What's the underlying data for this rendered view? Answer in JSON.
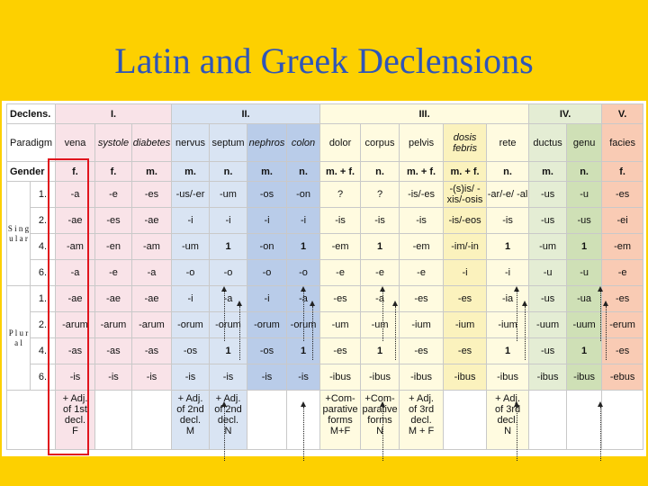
{
  "title": "Latin and Greek Declensions",
  "header1": [
    "Declens.",
    "I.",
    "II.",
    "III.",
    "IV.",
    "V."
  ],
  "paradigm_label": "Paradigm",
  "paradigms": [
    "vena",
    "systole",
    "diabetes",
    "nervus",
    "septum",
    "nephros",
    "colon",
    "dolor",
    "corpus",
    "pelvis",
    "dosis febris",
    "rete",
    "ductus",
    "genu",
    "facies"
  ],
  "gender_label": "Gender",
  "genders": [
    "f.",
    "f.",
    "m.",
    "m.",
    "n.",
    "m.",
    "n.",
    "m. + f.",
    "n.",
    "m. + f.",
    "m. + f.",
    "n.",
    "m.",
    "n.",
    "f."
  ],
  "singular_label": "S i n g u l a r",
  "plural_label": "P l u r a l",
  "singular_rows": [
    {
      "case": "1.",
      "cells": [
        "-a",
        "-e",
        "-es",
        "-us/-er",
        "-um",
        "-os",
        "-on",
        "?",
        "?",
        "-is/-es",
        "-(s)is/ -xis/-osis",
        "-ar/-e/ -al",
        "-us",
        "-u",
        "-es"
      ]
    },
    {
      "case": "2.",
      "cells": [
        "-ae",
        "-es",
        "-ae",
        "-i",
        "-i",
        "-i",
        "-i",
        "-is",
        "-is",
        "-is",
        "-is/-eos",
        "-is",
        "-us",
        "-us",
        "-ei"
      ]
    },
    {
      "case": "4.",
      "cells": [
        "-am",
        "-en",
        "-am",
        "-um",
        "1",
        "-on",
        "1",
        "-em",
        "1",
        "-em",
        "-im/-in",
        "1",
        "-um",
        "1",
        "-em"
      ]
    },
    {
      "case": "6.",
      "cells": [
        "-a",
        "-e",
        "-a",
        "-o",
        "-o",
        "-o",
        "-o",
        "-e",
        "-e",
        "-e",
        "-i",
        "-i",
        "-u",
        "-u",
        "-e"
      ]
    }
  ],
  "plural_rows": [
    {
      "case": "1.",
      "cells": [
        "-ae",
        "-ae",
        "-ae",
        "-i",
        "-a",
        "-i",
        "-a",
        "-es",
        "-a",
        "-es",
        "-es",
        "-ia",
        "-us",
        "-ua",
        "-es"
      ]
    },
    {
      "case": "2.",
      "cells": [
        "-arum",
        "-arum",
        "-arum",
        "-orum",
        "-orum",
        "-orum",
        "-orum",
        "-um",
        "-um",
        "-ium",
        "-ium",
        "-ium",
        "-uum",
        "-uum",
        "-erum"
      ]
    },
    {
      "case": "4.",
      "cells": [
        "-as",
        "-as",
        "-as",
        "-os",
        "1",
        "-os",
        "1",
        "-es",
        "1",
        "-es",
        "-es",
        "1",
        "-us",
        "1",
        "-es"
      ]
    },
    {
      "case": "6.",
      "cells": [
        "-is",
        "-is",
        "-is",
        "-is",
        "-is",
        "-is",
        "-is",
        "-ibus",
        "-ibus",
        "-ibus",
        "-ibus",
        "-ibus",
        "-ibus",
        "-ibus",
        "-ebus"
      ]
    }
  ],
  "adjectives": {
    "vena": "+ Adj.\nof 1st\ndecl.\nF",
    "nervus": "+ Adj.\nof 2nd\ndecl.\nM",
    "septum": "+ Adj.\nof 2nd\ndecl.\nN",
    "dolor": "+Com-\nparative\nforms\nM+F",
    "corpus": "+Com-\nparative\nforms\nN",
    "pelvis": "+ Adj.\nof 3rd\ndecl.\nM + F",
    "rete": "+ Adj.\nof 3rd\ndecl.\nN"
  },
  "colors": {
    "background": "#fdd000",
    "title": "#2f55b8",
    "decl1": "#f9e3e8",
    "decl2": "#d9e4f3",
    "decl3": "#fffbe0",
    "decl4": "#e4edd4",
    "decl5": "#f9cbb4",
    "highlight": "#e0141d"
  }
}
